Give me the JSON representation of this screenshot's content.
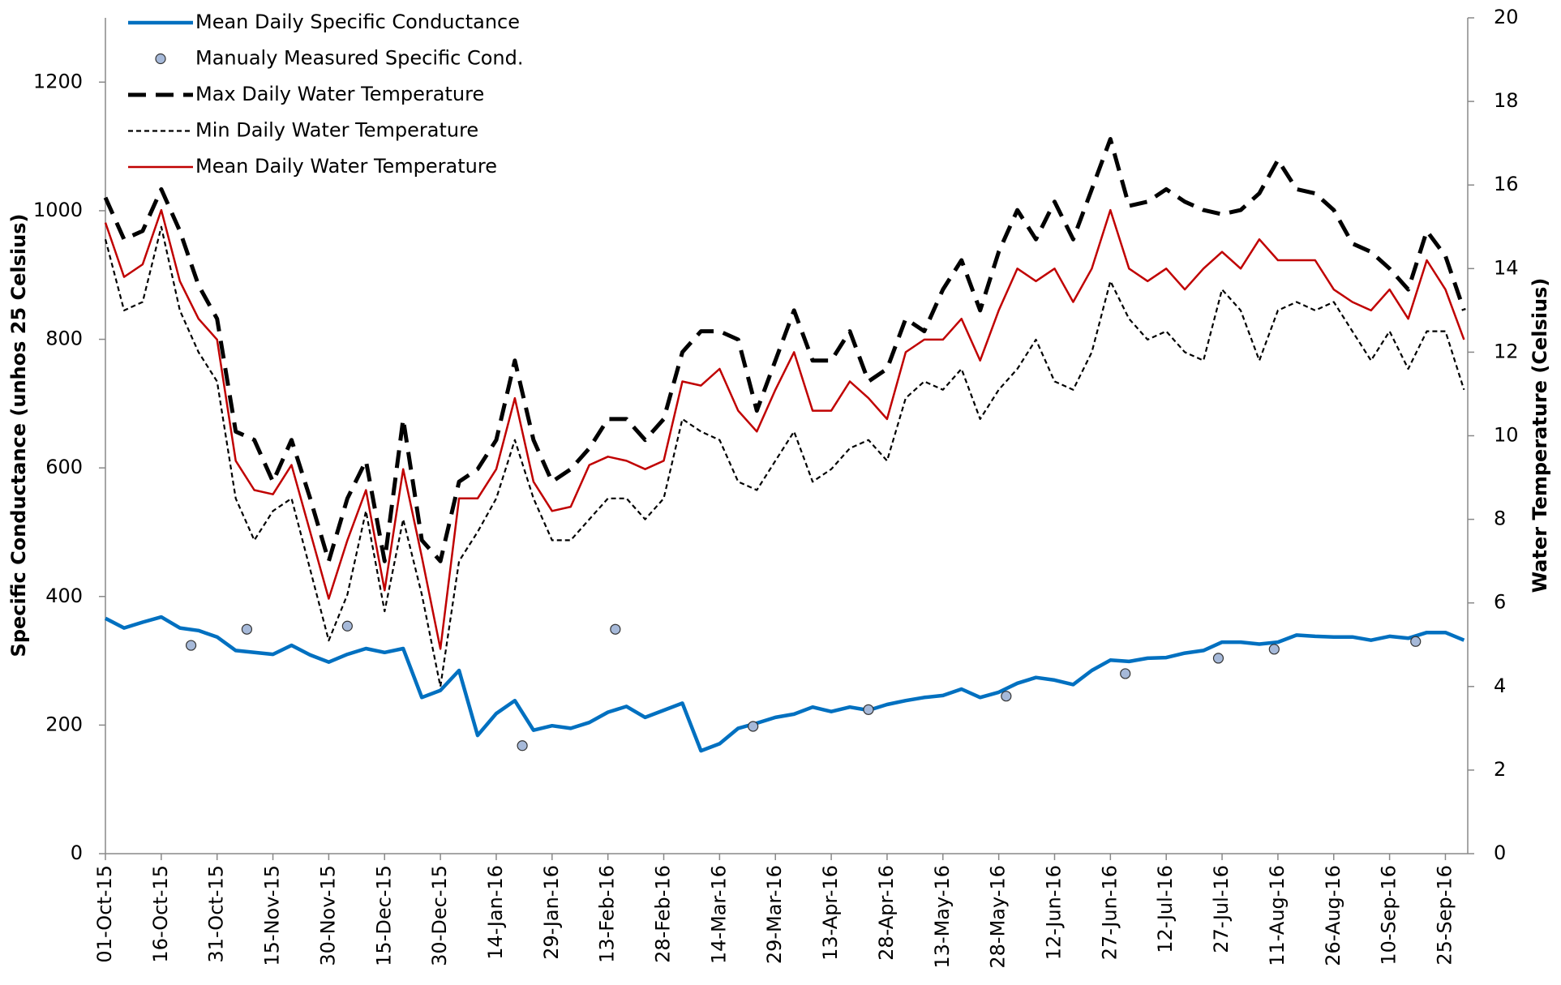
{
  "chart_data": {
    "type": "line",
    "ylabel": "Specific Conductance (unhos 25 Celsius)",
    "y2label": "Water Temperature (Celsius)",
    "xlim": [
      "2015-10-01",
      "2016-10-01"
    ],
    "xticks": [
      {
        "value": "2015-10-01",
        "label": "01-Oct-15"
      },
      {
        "value": "2015-10-16",
        "label": "16-Oct-15"
      },
      {
        "value": "2015-10-31",
        "label": "31-Oct-15"
      },
      {
        "value": "2015-11-15",
        "label": "15-Nov-15"
      },
      {
        "value": "2015-11-30",
        "label": "30-Nov-15"
      },
      {
        "value": "2015-12-15",
        "label": "15-Dec-15"
      },
      {
        "value": "2015-12-30",
        "label": "30-Dec-15"
      },
      {
        "value": "2016-01-14",
        "label": "14-Jan-16"
      },
      {
        "value": "2016-01-29",
        "label": "29-Jan-16"
      },
      {
        "value": "2016-02-13",
        "label": "13-Feb-16"
      },
      {
        "value": "2016-02-28",
        "label": "28-Feb-16"
      },
      {
        "value": "2016-03-14",
        "label": "14-Mar-16"
      },
      {
        "value": "2016-03-29",
        "label": "29-Mar-16"
      },
      {
        "value": "2016-04-13",
        "label": "13-Apr-16"
      },
      {
        "value": "2016-04-28",
        "label": "28-Apr-16"
      },
      {
        "value": "2016-05-13",
        "label": "13-May-16"
      },
      {
        "value": "2016-05-28",
        "label": "28-May-16"
      },
      {
        "value": "2016-06-12",
        "label": "12-Jun-16"
      },
      {
        "value": "2016-06-27",
        "label": "27-Jun-16"
      },
      {
        "value": "2016-07-12",
        "label": "12-Jul-16"
      },
      {
        "value": "2016-07-27",
        "label": "27-Jul-16"
      },
      {
        "value": "2016-08-11",
        "label": "11-Aug-16"
      },
      {
        "value": "2016-08-26",
        "label": "26-Aug-16"
      },
      {
        "value": "2016-09-10",
        "label": "10-Sep-16"
      },
      {
        "value": "2016-09-25",
        "label": "25-Sep-16"
      }
    ],
    "ylim": [
      0,
      1300
    ],
    "yticks": [
      0,
      200,
      400,
      600,
      800,
      1000,
      1200
    ],
    "y2lim": [
      0,
      20
    ],
    "y2ticks": [
      0,
      2,
      4,
      6,
      8,
      10,
      12,
      14,
      16,
      18,
      20
    ],
    "legend": "top-left",
    "x": [
      "2015-10-01",
      "2015-10-06",
      "2015-10-11",
      "2015-10-16",
      "2015-10-21",
      "2015-10-26",
      "2015-10-31",
      "2015-11-05",
      "2015-11-10",
      "2015-11-15",
      "2015-11-20",
      "2015-11-25",
      "2015-11-30",
      "2015-12-05",
      "2015-12-10",
      "2015-12-15",
      "2015-12-20",
      "2015-12-25",
      "2015-12-30",
      "2016-01-04",
      "2016-01-09",
      "2016-01-14",
      "2016-01-19",
      "2016-01-24",
      "2016-01-29",
      "2016-02-03",
      "2016-02-08",
      "2016-02-13",
      "2016-02-18",
      "2016-02-23",
      "2016-02-28",
      "2016-03-04",
      "2016-03-09",
      "2016-03-14",
      "2016-03-19",
      "2016-03-24",
      "2016-03-29",
      "2016-04-03",
      "2016-04-08",
      "2016-04-13",
      "2016-04-18",
      "2016-04-23",
      "2016-04-28",
      "2016-05-03",
      "2016-05-08",
      "2016-05-13",
      "2016-05-18",
      "2016-05-23",
      "2016-05-28",
      "2016-06-02",
      "2016-06-07",
      "2016-06-12",
      "2016-06-17",
      "2016-06-22",
      "2016-06-27",
      "2016-07-02",
      "2016-07-07",
      "2016-07-12",
      "2016-07-17",
      "2016-07-22",
      "2016-07-27",
      "2016-08-01",
      "2016-08-06",
      "2016-08-11",
      "2016-08-16",
      "2016-08-21",
      "2016-08-26",
      "2016-08-31",
      "2016-09-05",
      "2016-09-10",
      "2016-09-15",
      "2016-09-20",
      "2016-09-25",
      "2016-09-30"
    ],
    "series": [
      {
        "name": "Mean Daily Specific Conductance",
        "color": "#0070c0",
        "style": "solid",
        "axis": "y",
        "values": [
          366,
          351,
          360,
          368,
          351,
          347,
          337,
          316,
          313,
          310,
          324,
          309,
          298,
          310,
          319,
          313,
          319,
          243,
          254,
          285,
          184,
          218,
          238,
          192,
          199,
          195,
          204,
          220,
          229,
          212,
          223,
          234,
          160,
          171,
          195,
          203,
          212,
          217,
          228,
          221,
          228,
          223,
          232,
          238,
          243,
          246,
          256,
          243,
          251,
          265,
          274,
          270,
          263,
          285,
          301,
          299,
          304,
          305,
          312,
          316,
          329,
          329,
          326,
          329,
          340,
          338,
          337,
          337,
          332,
          338,
          335,
          344,
          344,
          332
        ]
      },
      {
        "name": "Manualy Measured Specific Cond.",
        "color": "#a6b9d9",
        "style": "markers",
        "axis": "y",
        "x": [
          "2015-10-24",
          "2015-11-08",
          "2015-12-05",
          "2016-01-21",
          "2016-02-15",
          "2016-03-23",
          "2016-04-23",
          "2016-05-30",
          "2016-07-01",
          "2016-07-26",
          "2016-08-10",
          "2016-09-17"
        ],
        "values": [
          324,
          349,
          354,
          168,
          349,
          198,
          224,
          245,
          280,
          304,
          318,
          330
        ]
      },
      {
        "name": "Max Daily Water Temperature",
        "color": "#000000",
        "style": "dashed",
        "axis": "y2",
        "values": [
          15.7,
          14.7,
          14.9,
          15.9,
          14.9,
          13.6,
          12.8,
          10.1,
          9.9,
          8.9,
          9.9,
          8.5,
          7.0,
          8.5,
          9.4,
          7.0,
          10.4,
          7.5,
          7.0,
          8.9,
          9.2,
          9.9,
          11.8,
          9.9,
          8.9,
          9.2,
          9.7,
          10.4,
          10.4,
          9.9,
          10.4,
          12.0,
          12.5,
          12.5,
          12.3,
          10.6,
          11.8,
          13.0,
          11.8,
          11.8,
          12.5,
          11.3,
          11.6,
          12.8,
          12.5,
          13.5,
          14.2,
          13.0,
          14.4,
          15.4,
          14.7,
          15.6,
          14.7,
          15.9,
          17.1,
          15.5,
          15.6,
          15.9,
          15.6,
          15.4,
          15.3,
          15.4,
          15.8,
          16.6,
          15.9,
          15.8,
          15.4,
          14.6,
          14.4,
          14.0,
          13.5,
          14.9,
          14.3,
          13.0
        ]
      },
      {
        "name": "Min Daily Water Temperature",
        "color": "#000000",
        "style": "dotted",
        "axis": "y2",
        "values": [
          14.7,
          13.0,
          13.2,
          15.0,
          13.0,
          12.0,
          11.3,
          8.5,
          7.5,
          8.2,
          8.5,
          6.8,
          5.1,
          6.2,
          8.2,
          5.8,
          8.0,
          6.2,
          4.0,
          7.0,
          7.7,
          8.5,
          9.9,
          8.5,
          7.5,
          7.5,
          8.0,
          8.5,
          8.5,
          8.0,
          8.5,
          10.4,
          10.1,
          9.9,
          8.9,
          8.7,
          9.4,
          10.1,
          8.9,
          9.2,
          9.7,
          9.9,
          9.4,
          10.9,
          11.3,
          11.1,
          11.6,
          10.4,
          11.1,
          11.6,
          12.3,
          11.3,
          11.1,
          12.0,
          13.7,
          12.8,
          12.3,
          12.5,
          12.0,
          11.8,
          13.5,
          13.0,
          11.8,
          13.0,
          13.2,
          13.0,
          13.2,
          12.5,
          11.8,
          12.5,
          11.6,
          12.5,
          12.5,
          11.1
        ]
      },
      {
        "name": "Mean Daily Water Temperature",
        "color": "#c00000",
        "style": "solid",
        "axis": "y2",
        "values": [
          15.1,
          13.8,
          14.1,
          15.4,
          13.7,
          12.8,
          12.3,
          9.4,
          8.7,
          8.6,
          9.3,
          7.7,
          6.1,
          7.5,
          8.7,
          6.3,
          9.2,
          7.1,
          4.9,
          8.5,
          8.5,
          9.2,
          10.9,
          8.9,
          8.2,
          8.3,
          9.3,
          9.5,
          9.4,
          9.2,
          9.4,
          11.3,
          11.2,
          11.6,
          10.6,
          10.1,
          11.1,
          12.0,
          10.6,
          10.6,
          11.3,
          10.9,
          10.4,
          12.0,
          12.3,
          12.3,
          12.8,
          11.8,
          13.0,
          14.0,
          13.7,
          14.0,
          13.2,
          14.0,
          15.4,
          14.0,
          13.7,
          14.0,
          13.5,
          14.0,
          14.4,
          14.0,
          14.7,
          14.2,
          14.2,
          14.2,
          13.5,
          13.2,
          13.0,
          13.5,
          12.8,
          14.2,
          13.5,
          12.3
        ]
      }
    ]
  }
}
